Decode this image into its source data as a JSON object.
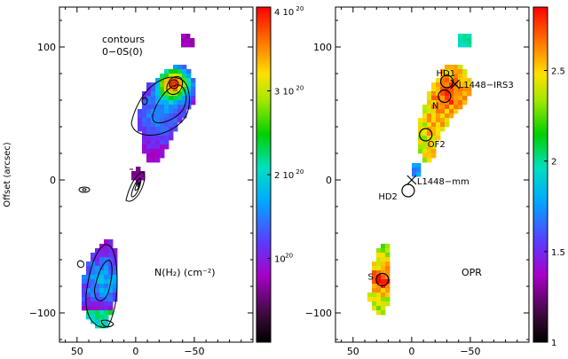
{
  "chart_data": [
    {
      "type": "heatmap",
      "panel": "left",
      "ylabel": "Offset (arcsec)",
      "xlim": [
        65,
        -100
      ],
      "ylim": [
        -122,
        130
      ],
      "x_ticks": [
        50,
        0,
        -50
      ],
      "y_ticks": [
        100,
        0,
        -100
      ],
      "annotations": {
        "contours_title": "contours",
        "contours_line": "0−0S(0)",
        "quantity_label": "N(H₂) (cm⁻²)"
      },
      "colorbar": {
        "range": [
          0,
          4e+20
        ],
        "tick_values": [
          1e+20,
          2e+20,
          3e+20,
          4e+20
        ],
        "tick_labels": [
          {
            "base": "10",
            "exp": "20"
          },
          {
            "base": "2 10",
            "exp": "20"
          },
          {
            "base": "3 10",
            "exp": "20"
          },
          {
            "base": "4 10",
            "exp": "20"
          }
        ]
      },
      "emission_regions": [
        {
          "name": "L1448-IRS3 lobe",
          "x_range": [
            -10,
            -58
          ],
          "y_range": [
            30,
            100
          ],
          "peak": 3.8e+20
        },
        {
          "name": "isolated knot",
          "x_range": [
            -37,
            -45
          ],
          "y_range": [
            100,
            112
          ],
          "peak": 6e+19
        },
        {
          "name": "southern lobe",
          "x_range": [
            45,
            10
          ],
          "y_range": [
            -115,
            -45
          ],
          "peak": 1.3e+20
        },
        {
          "name": "mm knot",
          "x_range": [
            0,
            -7
          ],
          "y_range": [
            -4,
            10
          ],
          "peak": 5e+19
        }
      ]
    },
    {
      "type": "heatmap",
      "panel": "right",
      "xlim": [
        65,
        -100
      ],
      "ylim": [
        -122,
        130
      ],
      "x_ticks": [
        50,
        0,
        -50
      ],
      "y_ticks": [
        100,
        0,
        -100
      ],
      "quantity_label": "OPR",
      "colorbar": {
        "range": [
          1,
          2.85
        ],
        "tick_values": [
          1,
          1.5,
          2,
          2.5
        ],
        "tick_labels": [
          "1",
          "1.5",
          "2",
          "2.5"
        ]
      },
      "markers": [
        {
          "label": "HD1",
          "x": -30,
          "y": 74,
          "shape": "circle"
        },
        {
          "label": "L1448−IRS3",
          "x": -37,
          "y": 72,
          "shape": "cross"
        },
        {
          "label": "N",
          "x": -28,
          "y": 63,
          "shape": "circle"
        },
        {
          "label": "OF2",
          "x": -12,
          "y": 34,
          "shape": "circle"
        },
        {
          "label": "L1448−mm",
          "x": 0,
          "y": 0,
          "shape": "cross"
        },
        {
          "label": "HD2",
          "x": 3,
          "y": -8,
          "shape": "circle"
        },
        {
          "label": "S",
          "x": 25,
          "y": -75,
          "shape": "circle"
        }
      ]
    }
  ]
}
